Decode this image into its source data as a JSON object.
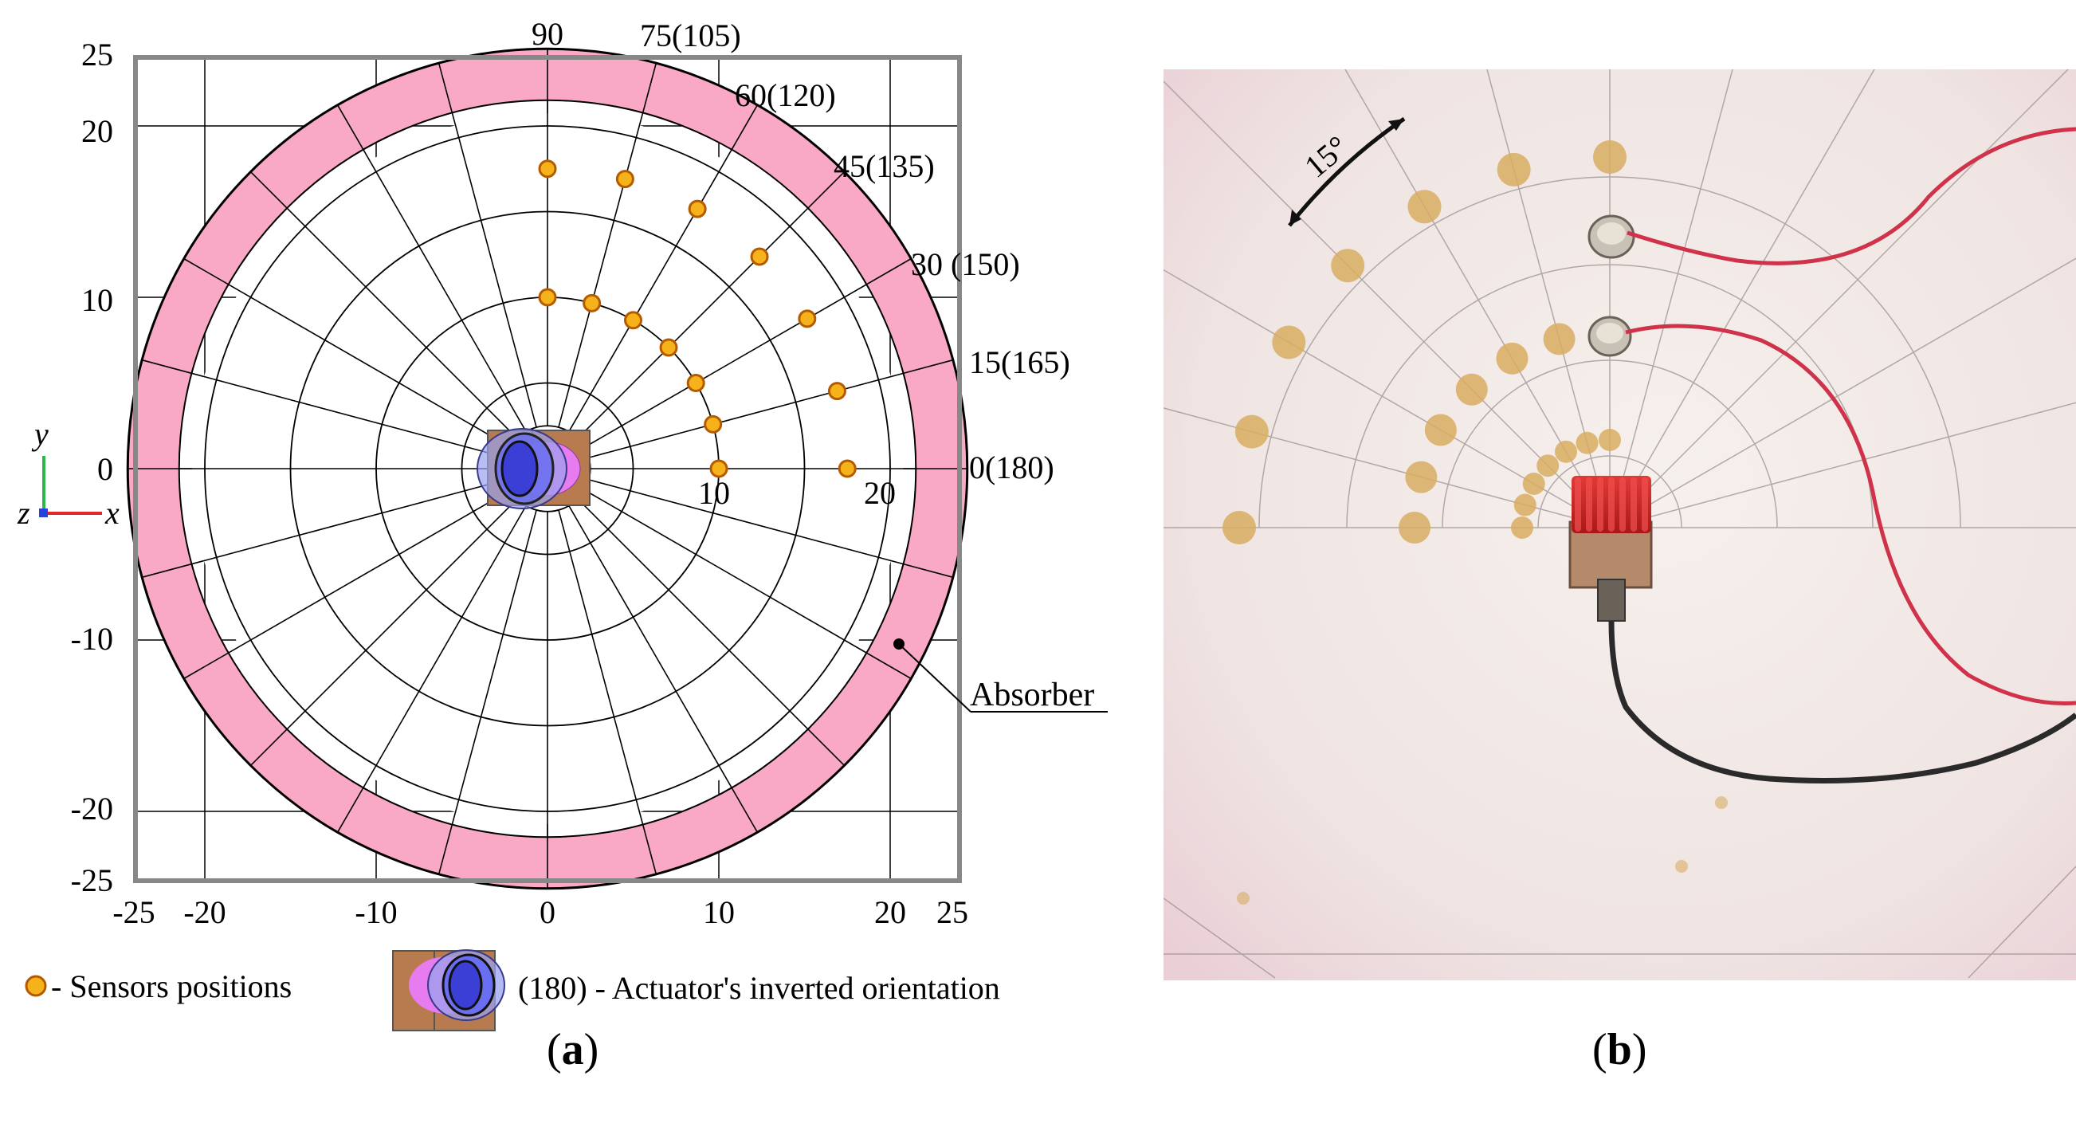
{
  "panel_a": {
    "caption_letter": "a",
    "axis_ticks_y": [
      "25",
      "20",
      "10",
      "0",
      "-10",
      "-20",
      "-25"
    ],
    "axis_ticks_x": [
      "-25",
      "-20",
      "-10",
      "0",
      "10",
      "20",
      "25"
    ],
    "angle_labels": [
      "90",
      "75(105)",
      "60(120)",
      "45(135)",
      "30 (150)",
      "15(165)",
      "0(180)"
    ],
    "radial_labels": [
      "10",
      "20"
    ],
    "absorber_label": "Absorber",
    "triad": {
      "y": "y",
      "z": "z",
      "x": "x"
    },
    "legend": {
      "sensors": "- Sensors positions",
      "actuator": "(180) - Actuator's inverted orientation"
    },
    "colors": {
      "absorber": "#f9a8c6",
      "sensor": "#f6b21a",
      "actuator_body": "#b87a4f",
      "actuator_blue": "#4a4de0",
      "actuator_magenta": "#e77bf0",
      "frame": "#888888"
    },
    "sensors_inner_ring": {
      "radius": 10,
      "angles_deg": [
        90,
        75,
        60,
        45,
        30,
        15,
        0
      ]
    },
    "sensors_outer_ring": {
      "radius": 17.5,
      "angles_deg": [
        90,
        75,
        60,
        45,
        30,
        15,
        0
      ]
    },
    "grid": {
      "circle_radii": [
        2.5,
        5,
        10,
        15,
        20,
        21.5,
        24.5
      ],
      "spoke_step_deg": 15,
      "absorber_inner": 21.5,
      "absorber_outer": 24.5
    }
  },
  "panel_b": {
    "caption_letter": "b",
    "angle_annotation": "15°",
    "colors": {
      "plate": "#f2ebe6",
      "spot": "#d8ad62",
      "actuator_red": "#d82a2a",
      "cable_red": "#d0324a",
      "cable_black": "#2a2a2a"
    }
  }
}
